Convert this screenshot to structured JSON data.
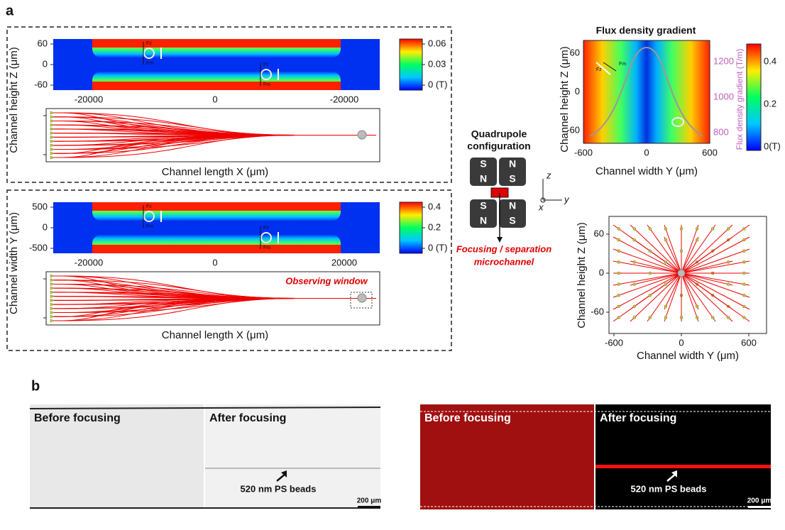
{
  "panel_a": {
    "label": "a",
    "top": {
      "y_label": "Channel height Z (μm)",
      "y_ticks": [
        "60",
        "0",
        "-60"
      ],
      "x_ticks": [
        "-20000",
        "0",
        "-20000"
      ],
      "colorbar": [
        "0.06",
        "0.03",
        "0 (T)"
      ],
      "x_label": "Channel length X (μm)",
      "forces": [
        "Fz",
        "Fm"
      ]
    },
    "bottom": {
      "y_label": "Channel width Y (μm)",
      "y_ticks": [
        "500",
        "0",
        "-500"
      ],
      "x_ticks": [
        "-20000",
        "0",
        "20000"
      ],
      "colorbar": [
        "0.4",
        "0.2",
        "0 (T)"
      ],
      "x_label": "Channel length X (μm)",
      "forces": [
        "Fz",
        "Fm"
      ],
      "annotation": "Observing window"
    },
    "quadrupole": {
      "title_lines": [
        "Quadrupole",
        "configuration"
      ],
      "magnets": [
        "S",
        "N",
        "N",
        "S",
        "S",
        "N",
        "N",
        "S"
      ],
      "axes": [
        "z",
        "y",
        "x"
      ],
      "caption_lines": [
        "Focusing / separation",
        "microchannel"
      ]
    },
    "gradient": {
      "title": "Flux density gradient",
      "y_label": "Channel height Z (μm)",
      "y_ticks": [
        "60",
        "0",
        "-60"
      ],
      "x_ticks": [
        "-600",
        "0",
        "600"
      ],
      "x_label": "Channel width Y (μm)",
      "y2_label": "Flux density gradient (T/m)",
      "y2_ticks": [
        "1200",
        "1000",
        "800"
      ],
      "colorbar": [
        "0.4",
        "0.2",
        "0(T)"
      ],
      "forces": [
        "Fz",
        "Fm"
      ]
    },
    "cross_section": {
      "y_label": "Channel height Z (μm)",
      "y_ticks": [
        "60",
        "0",
        "-60"
      ],
      "x_ticks": [
        "-600",
        "0",
        "600"
      ],
      "x_label": "Channel width Y (μm)"
    }
  },
  "panel_b": {
    "label": "b",
    "brightfield": {
      "before": "Before focusing",
      "after": "After focusing",
      "annotation": "520 nm PS beads",
      "scale": "200 μm"
    },
    "fluorescence": {
      "before": "Before focusing",
      "after": "After focusing",
      "annotation": "520 nm PS beads",
      "scale": "200 μm"
    }
  }
}
